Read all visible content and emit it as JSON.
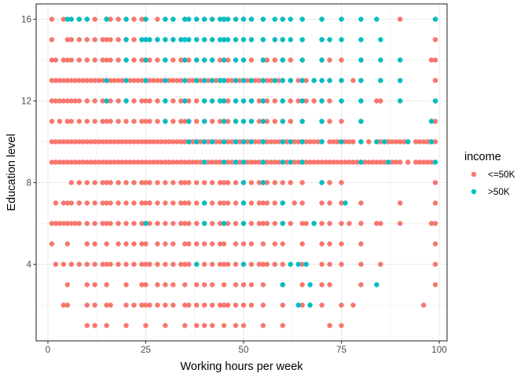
{
  "chart_data": {
    "type": "scatter",
    "title": "",
    "xlabel": "Working hours per week",
    "ylabel": "Education level",
    "xlim": [
      -3,
      102
    ],
    "ylim": [
      0.25,
      16.75
    ],
    "x_ticks": [
      0,
      25,
      50,
      75,
      100
    ],
    "y_ticks": [
      4,
      8,
      12,
      16
    ],
    "grid": true,
    "legend_position": "right",
    "legend": {
      "title": "income",
      "entries": [
        {
          "label": "<=50K",
          "color": "#F8766D"
        },
        {
          "label": ">50K",
          "color": "#00BFC4"
        }
      ]
    },
    "series": [
      {
        "name": "<=50K",
        "color": "#F8766D",
        "rows": [
          {
            "y": 1,
            "x": [
              10,
              12,
              15,
              20,
              25,
              30,
              35,
              38,
              40,
              42,
              45,
              48,
              50,
              55,
              60,
              72,
              75
            ]
          },
          {
            "y": 2,
            "x": [
              4,
              5,
              10,
              12,
              15,
              16,
              20,
              22,
              24,
              25,
              26,
              28,
              30,
              32,
              35,
              36,
              38,
              40,
              42,
              44,
              45,
              46,
              48,
              50,
              52,
              55,
              60,
              65,
              70,
              75,
              78,
              96
            ]
          },
          {
            "y": 3,
            "x": [
              5,
              10,
              12,
              15,
              20,
              24,
              25,
              28,
              30,
              32,
              35,
              38,
              40,
              42,
              45,
              48,
              50,
              52,
              55,
              60,
              65,
              70,
              72,
              80,
              99
            ]
          },
          {
            "y": 4,
            "x": [
              2,
              4,
              6,
              8,
              10,
              12,
              14,
              15,
              16,
              18,
              20,
              22,
              24,
              25,
              26,
              28,
              30,
              32,
              34,
              35,
              36,
              38,
              40,
              42,
              44,
              45,
              46,
              48,
              50,
              52,
              54,
              55,
              56,
              58,
              60,
              62,
              65,
              70,
              72,
              75,
              80,
              85,
              99
            ]
          },
          {
            "y": 5,
            "x": [
              1,
              5,
              10,
              12,
              15,
              18,
              20,
              22,
              24,
              25,
              28,
              30,
              32,
              35,
              36,
              38,
              40,
              42,
              44,
              45,
              48,
              50,
              52,
              55,
              58,
              60,
              65,
              70,
              72,
              75,
              80,
              99
            ]
          },
          {
            "y": 6,
            "x": [
              1,
              2,
              3,
              4,
              5,
              6,
              7,
              8,
              10,
              12,
              14,
              15,
              16,
              18,
              20,
              22,
              24,
              25,
              26,
              28,
              30,
              32,
              34,
              35,
              36,
              38,
              40,
              42,
              44,
              45,
              46,
              48,
              50,
              52,
              54,
              55,
              56,
              58,
              60,
              62,
              65,
              66,
              68,
              70,
              72,
              75,
              77,
              80,
              84,
              85,
              90,
              98,
              99
            ]
          },
          {
            "y": 7,
            "x": [
              2,
              4,
              5,
              6,
              8,
              10,
              12,
              14,
              15,
              16,
              18,
              20,
              22,
              24,
              25,
              26,
              28,
              30,
              32,
              34,
              35,
              36,
              38,
              40,
              42,
              44,
              45,
              46,
              48,
              50,
              52,
              54,
              55,
              56,
              58,
              60,
              63,
              65,
              70,
              72,
              75,
              80,
              90,
              99
            ]
          },
          {
            "y": 8,
            "x": [
              6,
              8,
              10,
              12,
              14,
              15,
              16,
              18,
              20,
              22,
              24,
              25,
              26,
              28,
              30,
              32,
              34,
              35,
              36,
              38,
              40,
              42,
              44,
              45,
              46,
              48,
              50,
              52,
              54,
              55,
              56,
              58,
              60,
              62,
              65,
              70,
              72,
              75,
              99
            ]
          },
          {
            "y": 9,
            "x": [
              1,
              2,
              3,
              4,
              5,
              6,
              7,
              8,
              9,
              10,
              11,
              12,
              13,
              14,
              15,
              16,
              17,
              18,
              19,
              20,
              21,
              22,
              23,
              24,
              25,
              26,
              27,
              28,
              29,
              30,
              31,
              32,
              33,
              34,
              35,
              36,
              37,
              38,
              39,
              40,
              41,
              42,
              43,
              44,
              45,
              46,
              47,
              48,
              49,
              50,
              51,
              52,
              53,
              54,
              55,
              56,
              57,
              58,
              59,
              60,
              61,
              62,
              63,
              64,
              65,
              66,
              67,
              68,
              69,
              70,
              71,
              72,
              73,
              74,
              75,
              76,
              77,
              78,
              79,
              80,
              81,
              82,
              83,
              84,
              85,
              86,
              87,
              88,
              89,
              90,
              92,
              94,
              95,
              96,
              97,
              98,
              99
            ]
          },
          {
            "y": 10,
            "x": [
              1,
              2,
              3,
              4,
              5,
              6,
              7,
              8,
              9,
              10,
              11,
              12,
              13,
              14,
              15,
              16,
              17,
              18,
              19,
              20,
              21,
              22,
              23,
              24,
              25,
              26,
              27,
              28,
              29,
              30,
              31,
              32,
              33,
              34,
              35,
              36,
              37,
              38,
              39,
              40,
              41,
              42,
              43,
              44,
              45,
              46,
              47,
              48,
              49,
              50,
              51,
              52,
              53,
              54,
              55,
              56,
              57,
              58,
              59,
              60,
              61,
              62,
              63,
              64,
              65,
              66,
              67,
              68,
              69,
              70,
              72,
              73,
              74,
              75,
              76,
              77,
              78,
              80,
              82,
              84,
              85,
              86,
              87,
              88,
              89,
              90,
              91,
              92,
              94,
              95,
              96,
              97,
              98,
              99
            ]
          },
          {
            "y": 11,
            "x": [
              1,
              3,
              5,
              6,
              8,
              10,
              12,
              14,
              15,
              16,
              18,
              20,
              22,
              24,
              25,
              26,
              28,
              30,
              32,
              34,
              35,
              36,
              38,
              40,
              42,
              44,
              45,
              46,
              48,
              50,
              52,
              54,
              55,
              56,
              58,
              60,
              62,
              65,
              70,
              72,
              75,
              80,
              98,
              99
            ]
          },
          {
            "y": 12,
            "x": [
              1,
              2,
              3,
              4,
              5,
              6,
              7,
              8,
              10,
              12,
              14,
              15,
              16,
              18,
              20,
              22,
              24,
              25,
              26,
              28,
              30,
              32,
              34,
              35,
              36,
              38,
              40,
              42,
              44,
              45,
              46,
              48,
              50,
              52,
              54,
              55,
              56,
              58,
              60,
              62,
              64,
              65,
              66,
              68,
              70,
              72,
              75,
              80,
              84,
              85,
              90,
              99
            ]
          },
          {
            "y": 13,
            "x": [
              1,
              2,
              3,
              4,
              5,
              6,
              7,
              8,
              9,
              10,
              11,
              12,
              13,
              14,
              15,
              16,
              17,
              18,
              19,
              20,
              21,
              22,
              23,
              24,
              25,
              26,
              27,
              28,
              29,
              30,
              31,
              32,
              33,
              34,
              35,
              36,
              37,
              38,
              39,
              40,
              41,
              42,
              43,
              44,
              45,
              46,
              47,
              48,
              49,
              50,
              51,
              52,
              53,
              54,
              55,
              56,
              57,
              58,
              59,
              60,
              62,
              64,
              65,
              66,
              68,
              70,
              72,
              75,
              78,
              80,
              85,
              90,
              99
            ]
          },
          {
            "y": 14,
            "x": [
              1,
              2,
              4,
              5,
              6,
              8,
              10,
              12,
              14,
              15,
              16,
              18,
              20,
              22,
              24,
              25,
              26,
              28,
              30,
              32,
              34,
              35,
              36,
              38,
              40,
              42,
              44,
              45,
              46,
              48,
              50,
              52,
              55,
              56,
              58,
              60,
              62,
              65,
              70,
              72,
              75,
              80,
              98,
              99
            ]
          },
          {
            "y": 15,
            "x": [
              1,
              5,
              6,
              8,
              10,
              12,
              14,
              15,
              16,
              18,
              20,
              22,
              24,
              25,
              28,
              30,
              32,
              35,
              38,
              40,
              42,
              44,
              45,
              48,
              50,
              52,
              55,
              58,
              60,
              65,
              70,
              99
            ]
          },
          {
            "y": 16,
            "x": [
              1,
              4,
              8,
              10,
              12,
              15,
              16,
              18,
              20,
              22,
              24,
              25,
              28,
              30,
              32,
              35,
              38,
              40,
              42,
              45,
              48,
              50,
              52,
              55,
              60,
              65,
              70,
              75,
              90,
              99
            ]
          }
        ]
      },
      {
        "name": ">50K",
        "color": "#00BFC4",
        "rows": [
          {
            "y": 2,
            "x": [
              64,
              67
            ]
          },
          {
            "y": 3,
            "x": [
              60,
              67,
              84
            ]
          },
          {
            "y": 4,
            "x": [
              38,
              50,
              62,
              64,
              66
            ]
          },
          {
            "y": 6,
            "x": [
              25,
              40,
              45,
              50,
              60,
              68
            ]
          },
          {
            "y": 7,
            "x": [
              40,
              50,
              60,
              76
            ]
          },
          {
            "y": 8,
            "x": [
              50,
              55,
              70
            ]
          },
          {
            "y": 9,
            "x": [
              40,
              45,
              48,
              50,
              55,
              60,
              62,
              65,
              80,
              87,
              99
            ]
          },
          {
            "y": 10,
            "x": [
              36,
              38,
              40,
              42,
              45,
              48,
              50,
              52,
              55,
              60,
              62,
              65,
              70,
              75,
              80,
              84,
              86,
              92,
              98
            ]
          },
          {
            "y": 11,
            "x": [
              30,
              36,
              40,
              45,
              48,
              50,
              52,
              55,
              60,
              65,
              70,
              80,
              98
            ]
          },
          {
            "y": 12,
            "x": [
              15,
              20,
              30,
              35,
              40,
              42,
              44,
              45,
              48,
              50,
              52,
              55,
              60,
              65,
              70,
              75,
              80,
              90,
              99
            ]
          },
          {
            "y": 13,
            "x": [
              15,
              20,
              25,
              30,
              35,
              38,
              40,
              42,
              44,
              45,
              48,
              50,
              52,
              55,
              58,
              60,
              62,
              65,
              68,
              70,
              72,
              75,
              80,
              85,
              90
            ]
          },
          {
            "y": 14,
            "x": [
              20,
              25,
              30,
              35,
              38,
              40,
              42,
              45,
              48,
              50,
              55,
              60,
              65,
              70,
              80,
              85,
              90
            ]
          },
          {
            "y": 15,
            "x": [
              20,
              24,
              25,
              26,
              28,
              30,
              32,
              34,
              35,
              36,
              38,
              40,
              42,
              44,
              45,
              46,
              48,
              50,
              52,
              55,
              58,
              60,
              62,
              65,
              70,
              72,
              75,
              80,
              85
            ]
          },
          {
            "y": 16,
            "x": [
              5,
              6,
              8,
              10,
              15,
              20,
              25,
              30,
              32,
              35,
              36,
              38,
              40,
              42,
              44,
              45,
              46,
              48,
              50,
              52,
              55,
              58,
              60,
              62,
              65,
              70,
              75,
              80,
              84,
              99
            ]
          }
        ]
      }
    ]
  }
}
